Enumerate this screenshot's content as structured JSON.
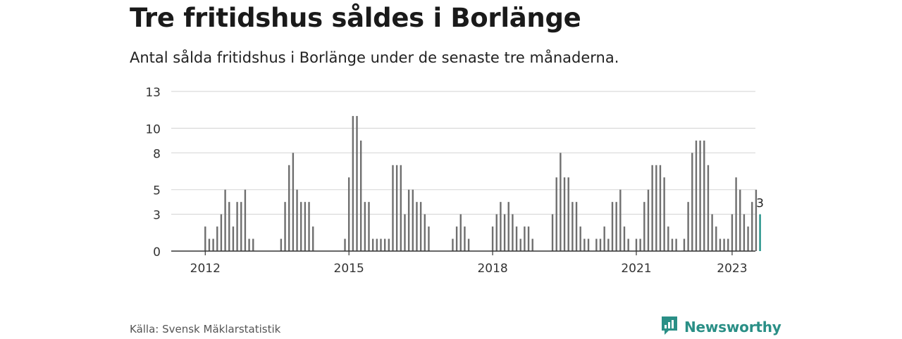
{
  "header": {
    "title": "Tre fritidshus såldes i Borlänge",
    "subtitle": "Antal sålda fritidshus i Borlänge under de senaste tre månaderna."
  },
  "footer": {
    "source": "Källa: Svensk Mäklarstatistik",
    "brand": "Newsworthy",
    "brand_icon": "newsworthy-logo-icon"
  },
  "colors": {
    "bar": "#6f6f6f",
    "highlight": "#1f8f86",
    "grid": "#d9d9d9",
    "axis": "#333333",
    "brand": "#2a8f86"
  },
  "chart_data": {
    "type": "bar",
    "start": "2011-01",
    "x_ticks": [
      "2012",
      "2015",
      "2018",
      "2021",
      "2023"
    ],
    "y_ticks": [
      "0",
      "3",
      "5",
      "8",
      "10",
      "13"
    ],
    "ylim": [
      0,
      13
    ],
    "grid": true,
    "highlight_label": "3",
    "values": [
      null,
      null,
      null,
      null,
      null,
      null,
      null,
      null,
      null,
      null,
      null,
      null,
      2,
      1,
      1,
      2,
      3,
      5,
      4,
      2,
      4,
      4,
      5,
      1,
      1,
      null,
      null,
      null,
      null,
      null,
      null,
      1,
      4,
      7,
      8,
      5,
      4,
      4,
      4,
      2,
      null,
      null,
      null,
      null,
      null,
      null,
      null,
      1,
      6,
      11,
      11,
      9,
      4,
      4,
      1,
      1,
      1,
      1,
      1,
      7,
      7,
      7,
      3,
      5,
      5,
      4,
      4,
      3,
      2,
      null,
      null,
      null,
      null,
      null,
      1,
      2,
      3,
      2,
      1,
      null,
      null,
      null,
      null,
      null,
      2,
      3,
      4,
      3,
      4,
      3,
      2,
      1,
      2,
      2,
      1,
      null,
      null,
      null,
      null,
      3,
      6,
      8,
      6,
      6,
      4,
      4,
      2,
      1,
      1,
      null,
      1,
      1,
      2,
      1,
      4,
      4,
      5,
      2,
      1,
      null,
      1,
      1,
      4,
      5,
      7,
      7,
      7,
      6,
      2,
      1,
      1,
      null,
      1,
      4,
      8,
      9,
      9,
      9,
      7,
      3,
      2,
      1,
      1,
      1,
      3,
      6,
      5,
      3,
      2,
      4,
      5,
      3
    ]
  }
}
